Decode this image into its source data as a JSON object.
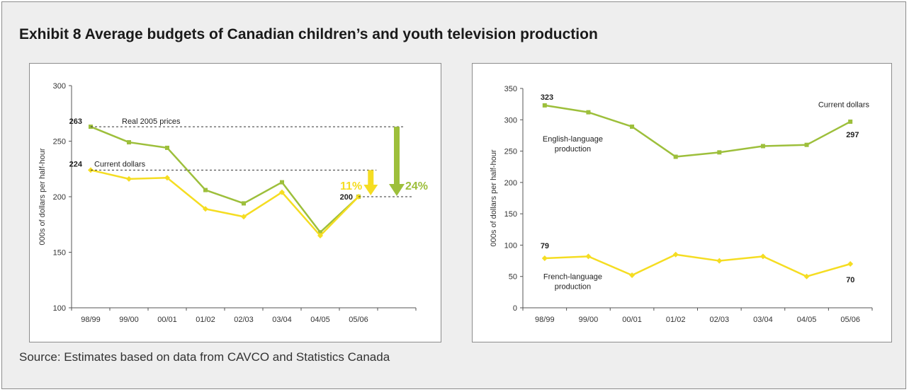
{
  "title": "Exhibit 8 Average budgets of Canadian children’s and youth television production",
  "source": "Source: Estimates based on data from CAVCO and Statistics Canada",
  "colors": {
    "green": "#9dbf3b",
    "yellow": "#f5dd22"
  },
  "chart_data": [
    {
      "type": "line",
      "categories": [
        "98/99",
        "99/00",
        "00/01",
        "01/02",
        "02/03",
        "03/04",
        "04/05",
        "05/06"
      ],
      "ylabel": "000s of dollars per half-hour",
      "ylim": [
        100,
        300
      ],
      "yticks": [
        "100",
        "150",
        "200",
        "250",
        "300"
      ],
      "grid": false,
      "series": [
        {
          "name": "Real 2005 prices",
          "color": "#9dbf3b",
          "values": [
            263,
            249,
            244,
            206,
            194,
            213,
            168,
            200
          ]
        },
        {
          "name": "Current dollars",
          "color": "#f5dd22",
          "values": [
            224,
            216,
            217,
            189,
            182,
            204,
            165,
            200
          ]
        }
      ],
      "data_labels": [
        "263",
        "224",
        "200"
      ],
      "annotations": {
        "pct_current": "11%",
        "pct_real": "24%"
      }
    },
    {
      "type": "line",
      "categories": [
        "98/99",
        "99/00",
        "00/01",
        "01/02",
        "02/03",
        "03/04",
        "04/05",
        "05/06"
      ],
      "ylabel": "000s of dollars per half-hour",
      "ylim": [
        0,
        350
      ],
      "yticks": [
        "0",
        "50",
        "100",
        "150",
        "200",
        "250",
        "300",
        "350"
      ],
      "grid": false,
      "note": "Current dollars",
      "series": [
        {
          "name": "English-language production",
          "name_lines": [
            "English-language",
            "production"
          ],
          "color": "#9dbf3b",
          "values": [
            323,
            312,
            289,
            241,
            248,
            258,
            260,
            297
          ]
        },
        {
          "name": "French-language production",
          "name_lines": [
            "French-language",
            "production"
          ],
          "color": "#f5dd22",
          "values": [
            79,
            82,
            52,
            85,
            75,
            82,
            50,
            70
          ]
        }
      ],
      "data_labels": [
        "323",
        "297",
        "79",
        "70"
      ]
    }
  ]
}
